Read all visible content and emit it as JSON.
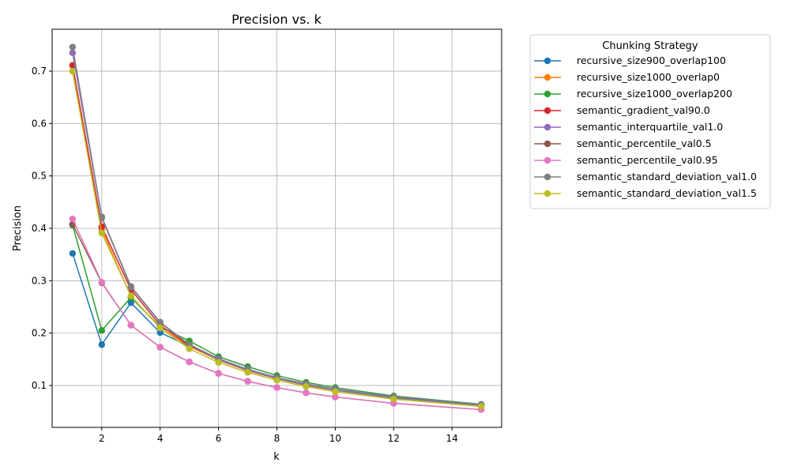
{
  "chart_data": {
    "type": "line",
    "title": "Precision vs. k",
    "xlabel": "k",
    "ylabel": "Precision",
    "xlim": [
      0.3,
      15.7
    ],
    "ylim": [
      0.02,
      0.78
    ],
    "xticks": [
      2,
      4,
      6,
      8,
      10,
      12,
      14
    ],
    "yticks": [
      0.1,
      0.2,
      0.3,
      0.4,
      0.5,
      0.6,
      0.7
    ],
    "grid": true,
    "legend": {
      "title": "Chunking Strategy",
      "placement": "outside-right"
    },
    "x": [
      1,
      2,
      3,
      4,
      5,
      6,
      7,
      8,
      9,
      10,
      12,
      15
    ],
    "series": [
      {
        "name": "recursive_size900_overlap100",
        "color": "#1f77b4",
        "values": [
          0.352,
          0.178,
          0.258,
          0.201,
          0.175,
          0.15,
          0.13,
          0.115,
          0.102,
          0.092,
          0.077,
          0.063
        ]
      },
      {
        "name": "recursive_size1000_overlap0",
        "color": "#ff7f0e",
        "values": [
          0.7,
          0.398,
          0.27,
          0.21,
          0.175,
          0.148,
          0.128,
          0.113,
          0.1,
          0.091,
          0.076,
          0.062
        ]
      },
      {
        "name": "recursive_size1000_overlap200",
        "color": "#2ca02c",
        "values": [
          0.406,
          0.205,
          0.268,
          0.212,
          0.185,
          0.155,
          0.136,
          0.119,
          0.106,
          0.096,
          0.08,
          0.064
        ]
      },
      {
        "name": "semantic_gradient_val90.0",
        "color": "#d62728",
        "values": [
          0.711,
          0.403,
          0.283,
          0.215,
          0.176,
          0.15,
          0.13,
          0.114,
          0.101,
          0.091,
          0.077,
          0.062
        ]
      },
      {
        "name": "semantic_interquartile_val1.0",
        "color": "#9467bd",
        "values": [
          0.735,
          0.42,
          0.288,
          0.22,
          0.178,
          0.151,
          0.131,
          0.115,
          0.103,
          0.093,
          0.078,
          0.063
        ]
      },
      {
        "name": "semantic_percentile_val0.5",
        "color": "#8c564b",
        "values": [
          0.408,
          0.296,
          0.215,
          0.173,
          0.145,
          0.123,
          0.108,
          0.096,
          0.086,
          0.078,
          0.066,
          0.054
        ]
      },
      {
        "name": "semantic_percentile_val0.95",
        "color": "#e377c2",
        "values": [
          0.418,
          0.297,
          0.215,
          0.173,
          0.145,
          0.123,
          0.108,
          0.096,
          0.086,
          0.078,
          0.066,
          0.054
        ]
      },
      {
        "name": "semantic_standard_deviation_val1.0",
        "color": "#7f7f7f",
        "values": [
          0.746,
          0.422,
          0.289,
          0.221,
          0.178,
          0.149,
          0.129,
          0.113,
          0.101,
          0.091,
          0.076,
          0.061
        ]
      },
      {
        "name": "semantic_standard_deviation_val1.5",
        "color": "#bcbd22",
        "values": [
          0.7,
          0.391,
          0.271,
          0.21,
          0.17,
          0.144,
          0.125,
          0.11,
          0.098,
          0.088,
          0.074,
          0.06
        ]
      }
    ]
  }
}
